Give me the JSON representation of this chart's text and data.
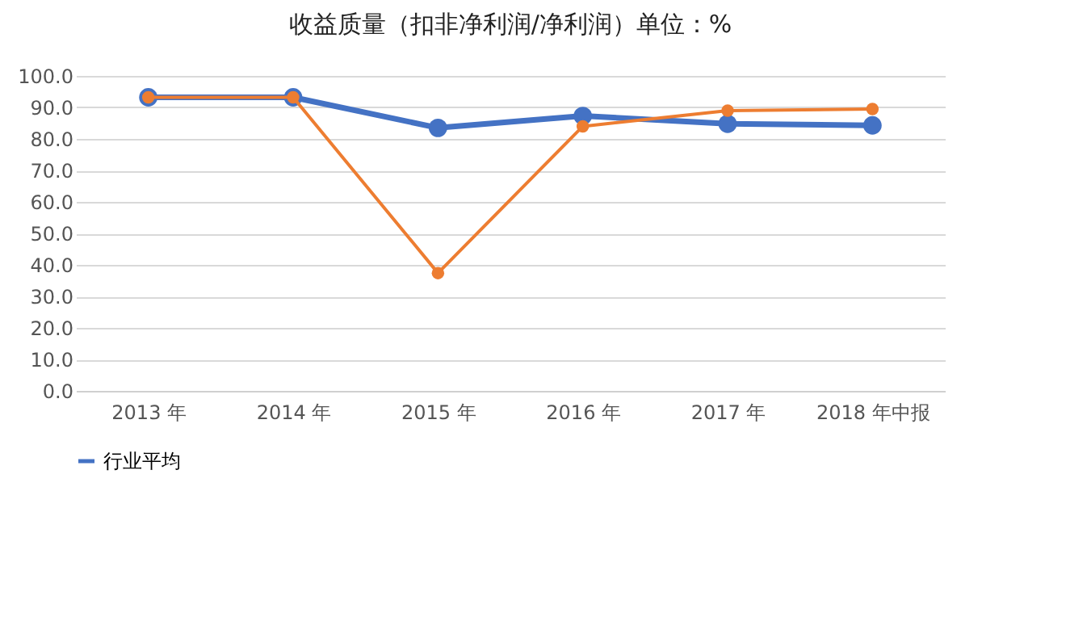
{
  "chart_data": {
    "type": "line",
    "title": "收益质量（扣非净利润/净利润）单位：%",
    "categories": [
      "2013 年",
      "2014 年",
      "2015 年",
      "2016 年",
      "2017 年",
      "2018 年中报"
    ],
    "series": [
      {
        "name": "行业平均",
        "color": "#4472c4",
        "values": [
          93.2,
          93.2,
          83.5,
          87.3,
          84.8,
          84.3
        ]
      },
      {
        "color": "#ed7d31",
        "values": [
          93.2,
          93.2,
          37.4,
          84.0,
          89.0,
          89.5
        ]
      }
    ],
    "ylim": [
      0,
      100
    ],
    "yticks": [
      {
        "value": 0,
        "label": "0.0"
      },
      {
        "value": 10,
        "label": "10.0"
      },
      {
        "value": 20,
        "label": "20.0"
      },
      {
        "value": 30,
        "label": "30.0"
      },
      {
        "value": 40,
        "label": "40.0"
      },
      {
        "value": 50,
        "label": "50.0"
      },
      {
        "value": 60,
        "label": "60.0"
      },
      {
        "value": 70,
        "label": "70.0"
      },
      {
        "value": 80,
        "label": "80.0"
      },
      {
        "value": 90,
        "label": "90.0"
      },
      {
        "value": 100,
        "label": "100.0"
      }
    ],
    "grid": "y",
    "legend": "bottom",
    "marker": "circle",
    "line_style": "solid"
  }
}
